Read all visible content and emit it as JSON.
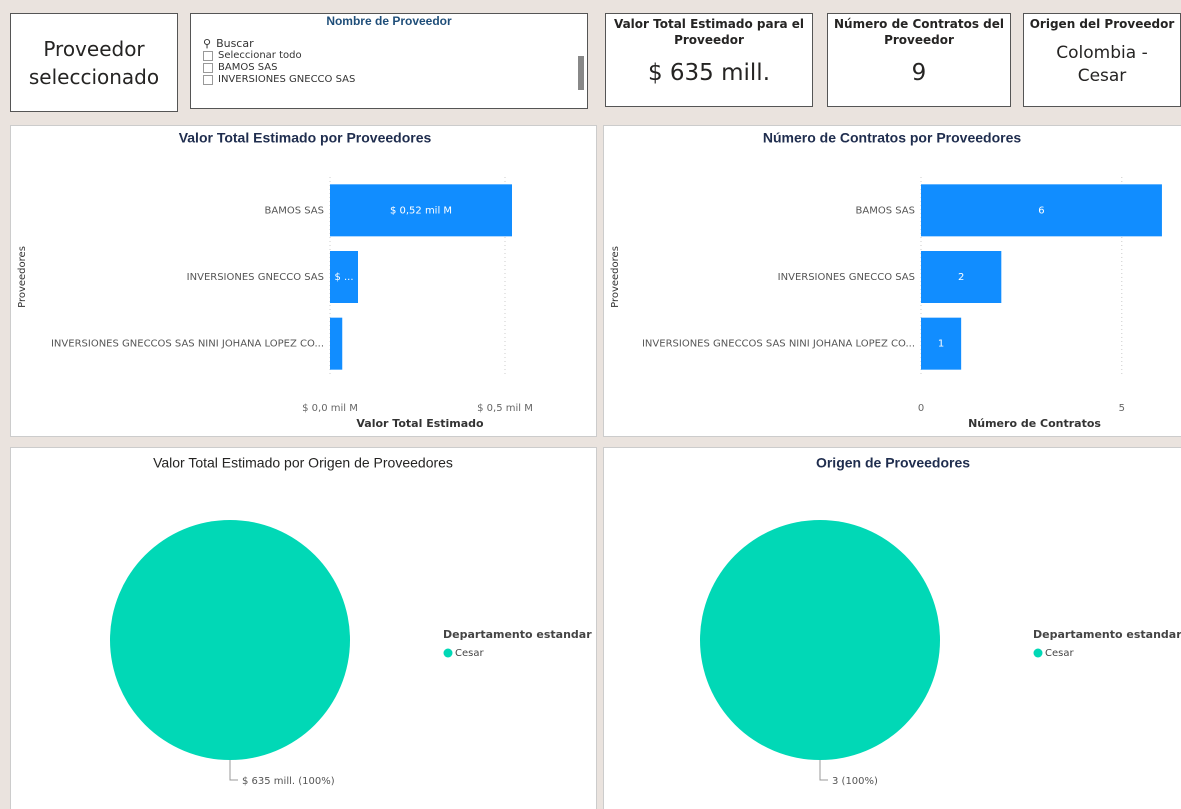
{
  "selected_card": {
    "text": "Proveedor seleccionado"
  },
  "slicer": {
    "title": "Nombre de Proveedor",
    "search": "Buscar",
    "items": [
      "Seleccionar todo",
      "BAMOS SAS",
      "INVERSIONES GNECCO SAS"
    ]
  },
  "cards": [
    {
      "title": "Valor Total Estimado para el Proveedor",
      "value": "$ 635 mill."
    },
    {
      "title": "Número de Contratos del Proveedor",
      "value": 9
    },
    {
      "title": "Origen del Proveedor",
      "value": "Colombia - Cesar"
    }
  ],
  "chart_data": [
    {
      "type": "hbar",
      "title": "Valor Total Estimado por Proveedores",
      "x_label": "Valor Total Estimado",
      "y_label": "Proveedores",
      "categories": [
        "BAMOS SAS",
        "INVERSIONES GNECCO SAS",
        "INVERSIONES GNECCOS SAS NINI JOHANA LOPEZ CO..."
      ],
      "values": [
        0.52,
        0.08,
        0.035
      ],
      "value_labels": [
        "$ 0,52 mil M",
        "$ ...",
        null
      ],
      "color": "#118dff",
      "xlim": [
        0,
        0.6
      ],
      "xticks": [
        {
          "value": 0,
          "label": "$ 0,0 mil M"
        },
        {
          "value": 0.5,
          "label": "$ 0,5 mil M"
        }
      ],
      "grid": true
    },
    {
      "type": "hbar",
      "title": "Número de Contratos por Proveedores",
      "x_label": "Número de Contratos",
      "y_label": "Proveedores",
      "categories": [
        "BAMOS SAS",
        "INVERSIONES GNECCO SAS",
        "INVERSIONES GNECCOS SAS NINI JOHANA LOPEZ CO..."
      ],
      "values": [
        6,
        2,
        1
      ],
      "color": "#118dff",
      "xlim": [
        0,
        6.4
      ],
      "xticks": [
        0,
        5
      ],
      "grid": true
    },
    {
      "type": "pie",
      "title": "Valor Total Estimado por Origen de Proveedores",
      "legend_title": "Departamento estandar",
      "categories": [
        "Cesar"
      ],
      "values": [
        635
      ],
      "value_labels": [
        "$ 635 mill. (100%)"
      ],
      "colors": [
        "#01d8b6"
      ]
    },
    {
      "type": "pie",
      "title": "Origen de Proveedores",
      "legend_title": "Departamento estandar",
      "categories": [
        "Cesar"
      ],
      "values": [
        3
      ],
      "value_labels": [
        "3 (100%)"
      ],
      "colors": [
        "#01d8b6"
      ]
    }
  ]
}
